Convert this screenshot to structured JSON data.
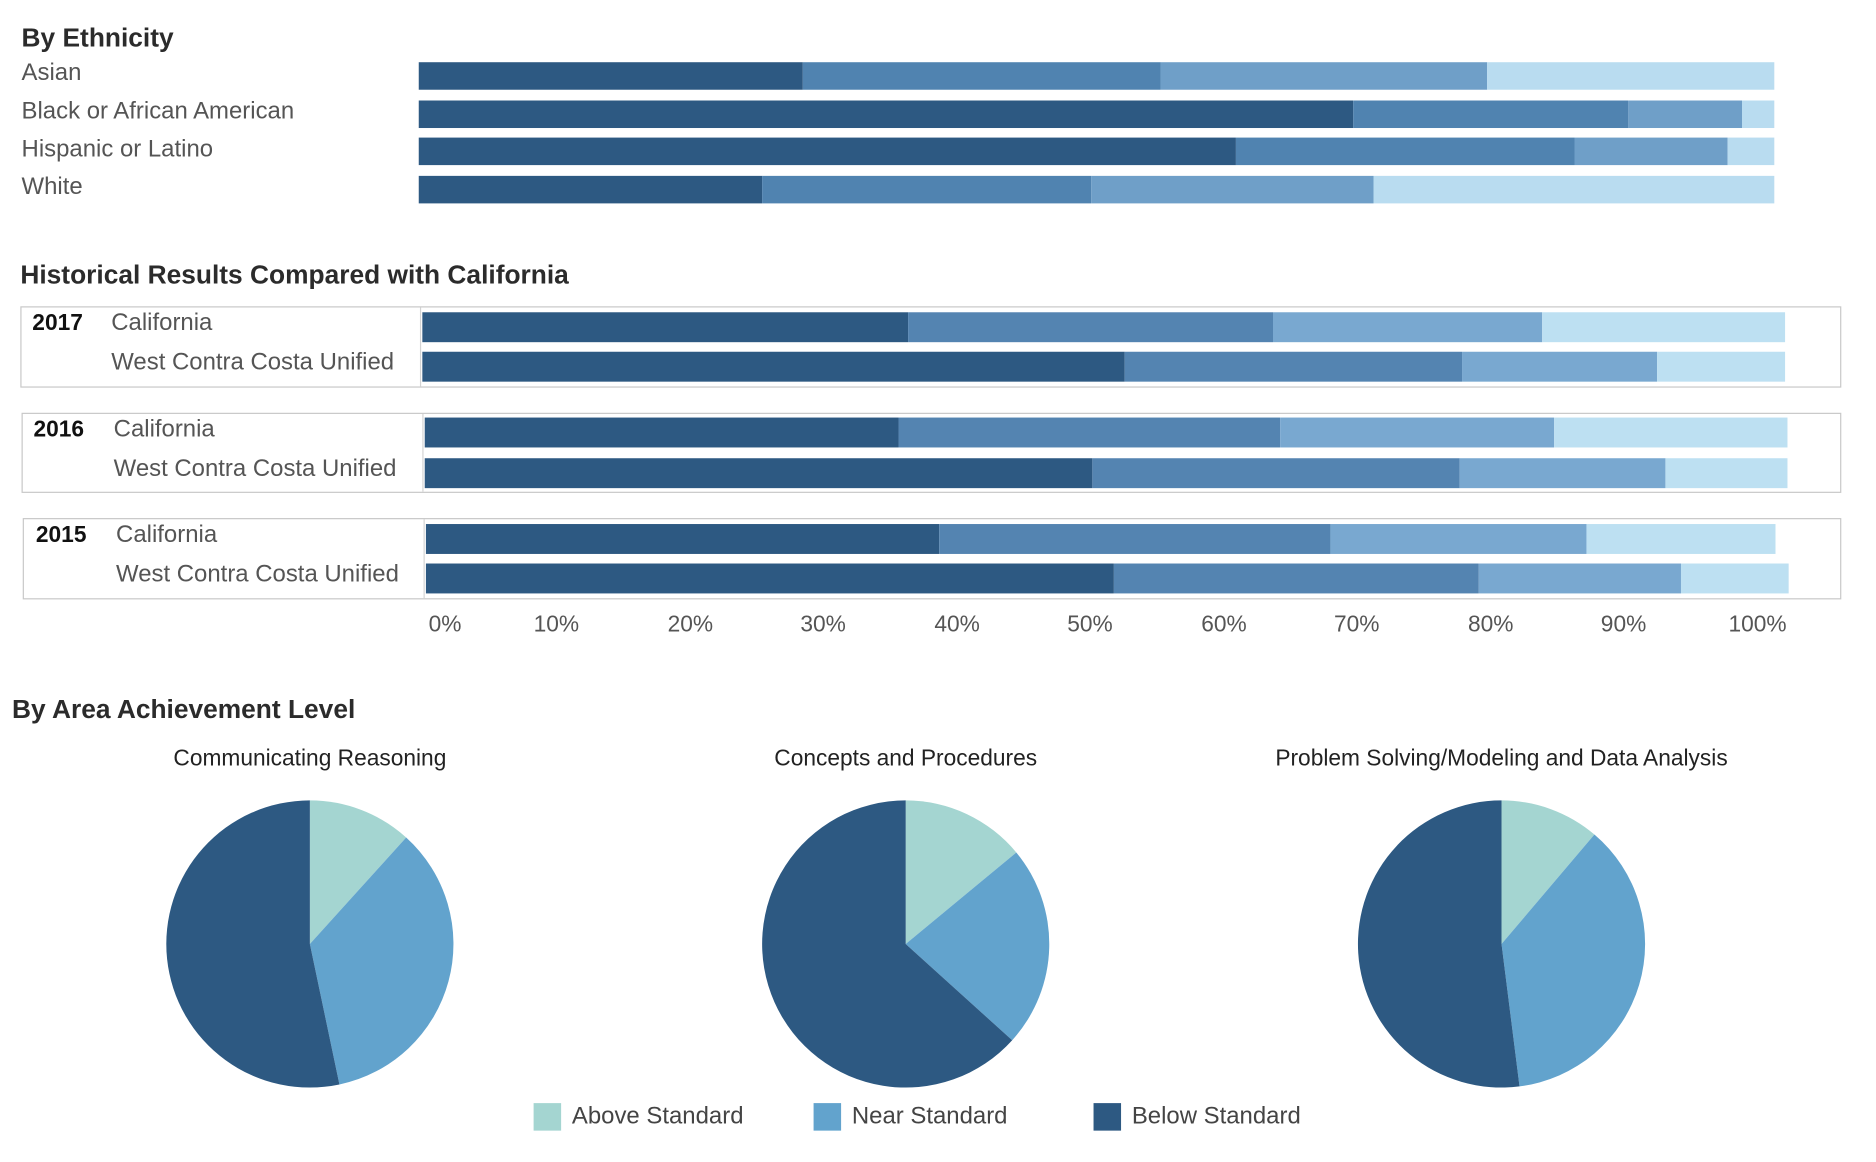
{
  "colors": {
    "bars": [
      "#2d5982",
      "#5083b0",
      "#6f9fc8",
      "#b9dcf0"
    ],
    "historical_bars": [
      "#2d5982",
      "#5484b1",
      "#79a8d0",
      "#bde0f2"
    ],
    "pie": {
      "above": "#a4d5d1",
      "near": "#62a3cd",
      "below": "#2d5982"
    }
  },
  "sections": {
    "ethnicity_title": "By Ethnicity",
    "historical_title": "Historical Results Compared with California",
    "area_title": "By Area Achievement Level"
  },
  "chart_data": [
    {
      "type": "bar",
      "orientation": "horizontal",
      "stacked": true,
      "title": "By Ethnicity",
      "categories": [
        "Asian",
        "Black or African American",
        "Hispanic or Latino",
        "White"
      ],
      "series": [
        {
          "values": [
            28.3,
            68.9,
            60.3,
            25.3
          ]
        },
        {
          "values": [
            26.4,
            20.3,
            25.0,
            24.3
          ]
        },
        {
          "values": [
            24.1,
            8.4,
            11.3,
            20.8
          ]
        },
        {
          "values": [
            21.2,
            2.4,
            3.4,
            29.6
          ]
        }
      ]
    },
    {
      "type": "bar",
      "orientation": "horizontal",
      "stacked": true,
      "title": "Historical Results Compared with California",
      "groups": [
        {
          "year": "2017",
          "rows": [
            {
              "label": "California",
              "values": [
                36,
                27,
                20,
                18
              ]
            },
            {
              "label": "West Contra Costa Unified",
              "values": [
                52,
                25,
                14.5,
                9.5
              ]
            }
          ]
        },
        {
          "year": "2016",
          "rows": [
            {
              "label": "California",
              "values": [
                35.1,
                28.3,
                20.3,
                17.3
              ]
            },
            {
              "label": "West Contra Costa Unified",
              "values": [
                49.5,
                27.2,
                15.2,
                9.1
              ]
            }
          ]
        },
        {
          "year": "2015",
          "rows": [
            {
              "label": "California",
              "values": [
                38,
                29,
                19,
                14
              ]
            },
            {
              "label": "West Contra Costa Unified",
              "values": [
                51,
                27,
                15,
                8
              ]
            }
          ]
        }
      ],
      "x_ticks": [
        "0%",
        "10%",
        "20%",
        "30%",
        "40%",
        "50%",
        "60%",
        "70%",
        "80%",
        "90%",
        "100%"
      ],
      "xlim": [
        0,
        100
      ]
    },
    {
      "type": "pie",
      "title": "By Area Achievement Level",
      "legend": {
        "position": "bottom",
        "labels": [
          "Above Standard",
          "Near Standard",
          "Below Standard"
        ]
      },
      "pies": [
        {
          "title": "Communicating Reasoning",
          "values": [
            11.7,
            35.0,
            53.3
          ]
        },
        {
          "title": "Concepts and Procedures",
          "values": [
            14.0,
            22.7,
            63.3
          ]
        },
        {
          "title": "Problem Solving/Modeling and Data Analysis",
          "values": [
            11.2,
            36.8,
            52.0
          ]
        }
      ]
    }
  ]
}
